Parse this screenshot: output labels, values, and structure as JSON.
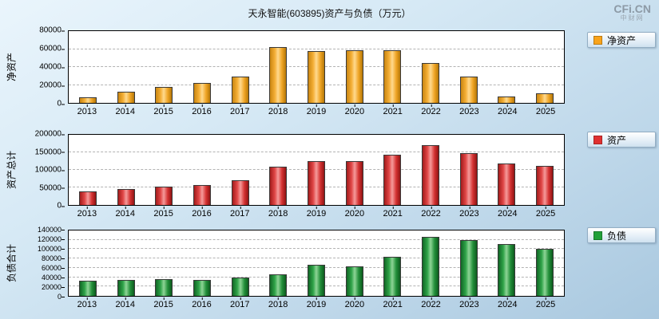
{
  "header": {
    "title": "天永智能(603895)资产与负债（万元）"
  },
  "logo": {
    "main": "CFi.CN",
    "sub": "中财网"
  },
  "chart_data": [
    {
      "type": "bar",
      "name": "净资产",
      "ylabel": "净资产",
      "legend_label": "净资产",
      "legend_position": "right",
      "color": "#F9A31A",
      "grid": true,
      "categories": [
        "2013",
        "2014",
        "2015",
        "2016",
        "2017",
        "2018",
        "2019",
        "2020",
        "2021",
        "2022",
        "2023",
        "2024",
        "2025"
      ],
      "values": [
        6000,
        12500,
        17500,
        22500,
        29500,
        62500,
        58000,
        58500,
        59000,
        44500,
        29500,
        7000,
        10500
      ],
      "ylim": [
        0,
        80000
      ],
      "yticks": [
        0,
        20000,
        40000,
        60000,
        80000
      ]
    },
    {
      "type": "bar",
      "name": "资产总计",
      "ylabel": "资产总计",
      "legend_label": "资产",
      "legend_position": "right",
      "color": "#E03030",
      "grid": true,
      "categories": [
        "2013",
        "2014",
        "2015",
        "2016",
        "2017",
        "2018",
        "2019",
        "2020",
        "2021",
        "2022",
        "2023",
        "2024",
        "2025"
      ],
      "values": [
        38000,
        45000,
        53000,
        56000,
        70000,
        108000,
        125000,
        125000,
        143000,
        170000,
        148000,
        118000,
        112000
      ],
      "ylim": [
        0,
        200000
      ],
      "yticks": [
        0,
        50000,
        100000,
        150000,
        200000
      ]
    },
    {
      "type": "bar",
      "name": "负债合计",
      "ylabel": "负债合计",
      "legend_label": "负债",
      "legend_position": "right",
      "color": "#21A038",
      "grid": true,
      "categories": [
        "2013",
        "2014",
        "2015",
        "2016",
        "2017",
        "2018",
        "2019",
        "2020",
        "2021",
        "2022",
        "2023",
        "2024",
        "2025"
      ],
      "values": [
        33000,
        33500,
        36500,
        33500,
        39000,
        46500,
        67000,
        63000,
        84000,
        127000,
        119000,
        111000,
        101000
      ],
      "ylim": [
        0,
        140000
      ],
      "yticks": [
        0,
        20000,
        40000,
        60000,
        80000,
        100000,
        120000,
        140000
      ]
    }
  ]
}
